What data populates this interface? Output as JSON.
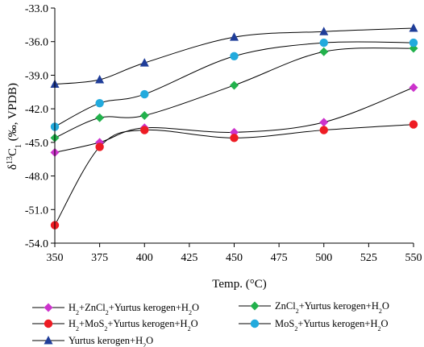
{
  "chart_data": {
    "type": "line",
    "xlabel": "Temp. (°C)",
    "ylabel_main": "δ",
    "ylabel_sup": "13",
    "ylabel_letter": "C",
    "ylabel_sub": "1",
    "ylabel_rest": " (‰, VPDB)",
    "x": [
      350,
      375,
      400,
      450,
      500,
      550
    ],
    "x_ticks": [
      350,
      375,
      400,
      425,
      450,
      475,
      500,
      525,
      550
    ],
    "x_tick_labels": [
      "350",
      "375",
      "400",
      "425",
      "450",
      "475",
      "500",
      "525",
      "550"
    ],
    "y_ticks": [
      -33,
      -36,
      -39,
      -42,
      -45,
      -48,
      -51,
      -54
    ],
    "y_tick_labels": [
      "-33.0",
      "-36.0",
      "-39.0",
      "-42.0",
      "-45.0",
      "-48.0",
      "-51.0",
      "-54.0"
    ],
    "xlim": [
      350,
      550
    ],
    "ylim": [
      -54,
      -33
    ],
    "grid": false,
    "legend_position": "bottom",
    "series": [
      {
        "name_parts": [
          "H",
          "2",
          "+ZnCl",
          "2",
          "+Yurtus kerogen+H",
          "2",
          "O"
        ],
        "marker": "diamond",
        "color": "#cc33cc",
        "values": [
          -45.9,
          -45.0,
          -43.7,
          -44.1,
          -43.2,
          -40.1
        ]
      },
      {
        "name_parts": [
          "ZnCl",
          "2",
          "+Yurtus kerogen+H",
          "2",
          "O"
        ],
        "marker": "diamond",
        "color": "#22b14c",
        "values": [
          -44.6,
          -42.8,
          -42.6,
          -39.9,
          -36.9,
          -36.6
        ]
      },
      {
        "name_parts": [
          "H",
          "2",
          "+MoS",
          "2",
          "+Yurtus kerogen+H",
          "2",
          "O"
        ],
        "marker": "circle",
        "color": "#ee1c24",
        "values": [
          -52.4,
          -45.4,
          -43.9,
          -44.6,
          -43.9,
          -43.4
        ]
      },
      {
        "name_parts": [
          "MoS",
          "2",
          "+Yurtus kerogen+H",
          "2",
          "O"
        ],
        "marker": "circle",
        "color": "#22aadd",
        "values": [
          -43.6,
          -41.5,
          -40.7,
          -37.3,
          -36.1,
          -36.1
        ]
      },
      {
        "name_parts": [
          "Yurtus kerogen+H",
          "2",
          "O"
        ],
        "marker": "triangle",
        "color": "#1f3d99",
        "values": [
          -39.8,
          -39.4,
          -37.9,
          -35.6,
          -35.1,
          -34.8
        ]
      }
    ]
  }
}
